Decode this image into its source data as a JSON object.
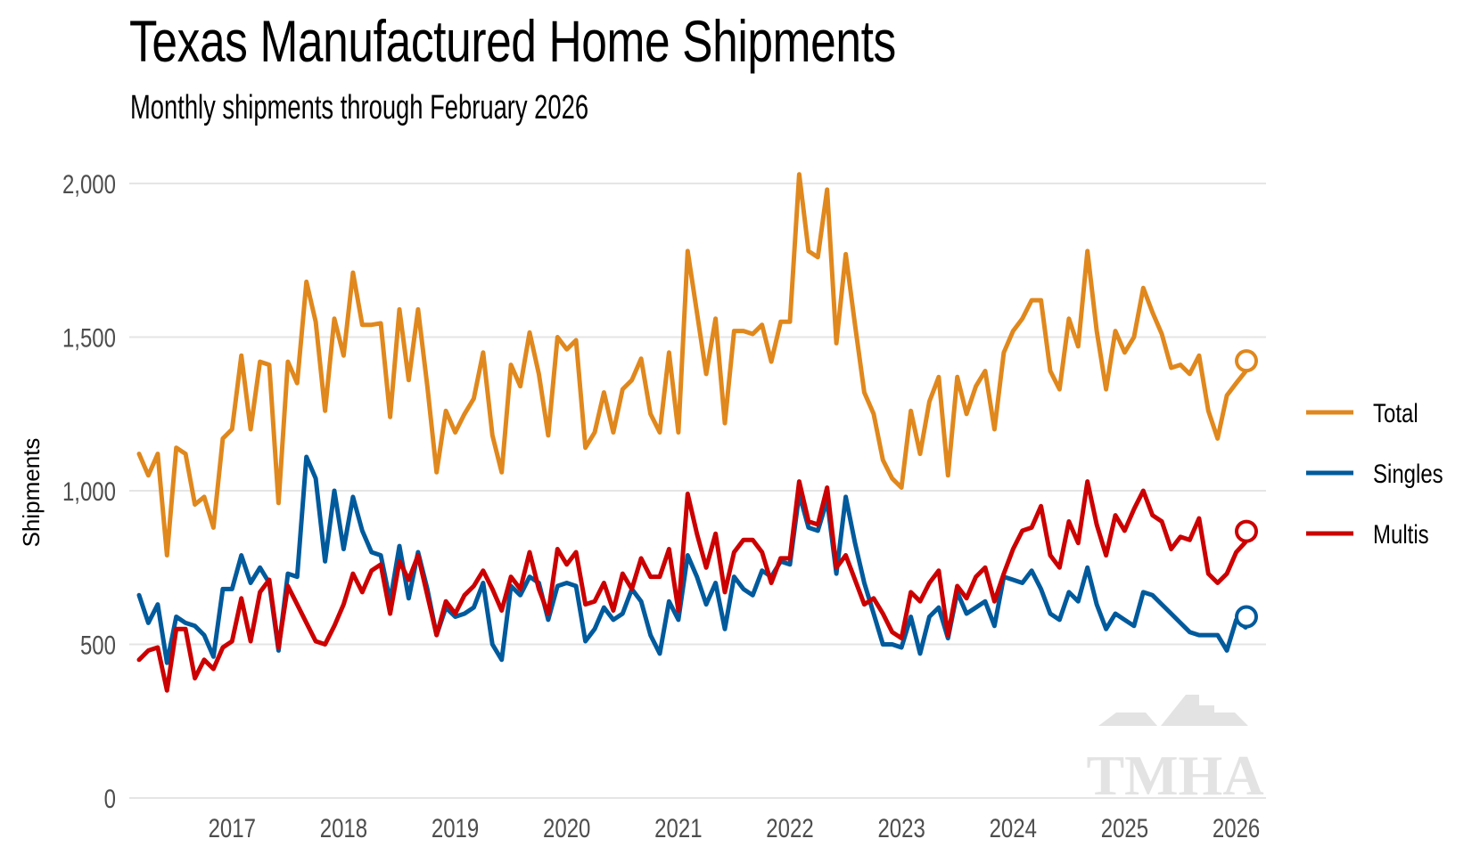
{
  "title": "Texas Manufactured Home Shipments",
  "subtitle": "Monthly shipments through February 2026",
  "watermark": "TMHA",
  "colors": {
    "Total": "#E0881D",
    "Singles": "#005A9C",
    "Multis": "#CC0000",
    "grid": "#E5E5E5",
    "tick": "#4D4D4D",
    "watermark": "#E3E3E3"
  },
  "chart_data": {
    "type": "line",
    "title": "Texas Manufactured Home Shipments",
    "subtitle": "Monthly shipments through February 2026",
    "xlabel": "",
    "ylabel": "Shipments",
    "ylim": [
      0,
      2000
    ],
    "yticks": [
      0,
      500,
      1000,
      1500,
      2000
    ],
    "ytick_labels": [
      "0",
      "500",
      "1,000",
      "1,500",
      "2,000"
    ],
    "xticks": [
      "2017",
      "2018",
      "2019",
      "2020",
      "2021",
      "2022",
      "2023",
      "2024",
      "2025",
      "2026"
    ],
    "x_start": "2016-03",
    "x_end": "2026-02",
    "frequency": "monthly",
    "grid": true,
    "legend": {
      "position": "right",
      "entries": [
        "Total",
        "Singles",
        "Multis"
      ]
    },
    "end_markers": true,
    "series": [
      {
        "name": "Total",
        "values": [
          1120,
          1050,
          1120,
          790,
          1140,
          1120,
          955,
          980,
          880,
          1170,
          1200,
          1440,
          1200,
          1420,
          1410,
          960,
          1420,
          1350,
          1680,
          1550,
          1260,
          1560,
          1440,
          1710,
          1540,
          1540,
          1545,
          1240,
          1590,
          1360,
          1590,
          1340,
          1060,
          1260,
          1190,
          1250,
          1300,
          1450,
          1180,
          1060,
          1410,
          1340,
          1515,
          1380,
          1180,
          1500,
          1460,
          1490,
          1140,
          1190,
          1320,
          1190,
          1330,
          1360,
          1430,
          1250,
          1190,
          1450,
          1190,
          1780,
          1580,
          1380,
          1560,
          1220,
          1520,
          1520,
          1510,
          1540,
          1420,
          1550,
          1550,
          2030,
          1780,
          1760,
          1980,
          1480,
          1770,
          1540,
          1320,
          1250,
          1100,
          1040,
          1010,
          1260,
          1120,
          1290,
          1370,
          1050,
          1370,
          1250,
          1340,
          1390,
          1200,
          1450,
          1520,
          1560,
          1620,
          1620,
          1390,
          1330,
          1560,
          1470,
          1780,
          1520,
          1330,
          1520,
          1450,
          1500,
          1660,
          1580,
          1510,
          1400,
          1410,
          1380,
          1440,
          1260,
          1170,
          1310,
          1350,
          1388
        ]
      },
      {
        "name": "Singles",
        "values": [
          660,
          570,
          630,
          440,
          590,
          570,
          560,
          530,
          460,
          680,
          680,
          790,
          700,
          750,
          700,
          480,
          730,
          720,
          1110,
          1040,
          770,
          1000,
          810,
          980,
          870,
          800,
          790,
          640,
          820,
          650,
          800,
          680,
          530,
          620,
          590,
          600,
          620,
          700,
          500,
          450,
          690,
          660,
          720,
          700,
          580,
          690,
          700,
          690,
          510,
          550,
          620,
          580,
          600,
          680,
          640,
          530,
          470,
          640,
          580,
          790,
          720,
          630,
          700,
          550,
          720,
          680,
          660,
          740,
          720,
          770,
          760,
          990,
          880,
          870,
          970,
          730,
          980,
          830,
          700,
          600,
          500,
          500,
          490,
          590,
          470,
          590,
          620,
          520,
          670,
          600,
          620,
          640,
          560,
          720,
          710,
          700,
          740,
          680,
          600,
          580,
          670,
          640,
          750,
          630,
          550,
          600,
          580,
          560,
          670,
          660,
          630,
          600,
          570,
          540,
          530,
          530,
          530,
          480,
          580,
          555
        ]
      },
      {
        "name": "Multis",
        "values": [
          450,
          480,
          490,
          350,
          550,
          550,
          390,
          450,
          420,
          490,
          510,
          650,
          510,
          670,
          710,
          490,
          690,
          630,
          570,
          510,
          500,
          560,
          630,
          730,
          670,
          740,
          760,
          600,
          770,
          710,
          790,
          660,
          530,
          640,
          600,
          660,
          690,
          740,
          680,
          610,
          720,
          680,
          800,
          680,
          600,
          810,
          760,
          800,
          630,
          640,
          700,
          610,
          730,
          680,
          780,
          720,
          720,
          810,
          610,
          990,
          860,
          750,
          860,
          670,
          800,
          840,
          840,
          800,
          700,
          780,
          780,
          1030,
          900,
          890,
          1010,
          750,
          790,
          710,
          630,
          650,
          600,
          540,
          520,
          670,
          640,
          700,
          740,
          530,
          690,
          650,
          720,
          750,
          640,
          730,
          810,
          870,
          880,
          950,
          790,
          750,
          900,
          830,
          1030,
          890,
          790,
          920,
          870,
          940,
          1000,
          920,
          900,
          810,
          850,
          840,
          910,
          730,
          700,
          730,
          800,
          833
        ]
      }
    ]
  }
}
